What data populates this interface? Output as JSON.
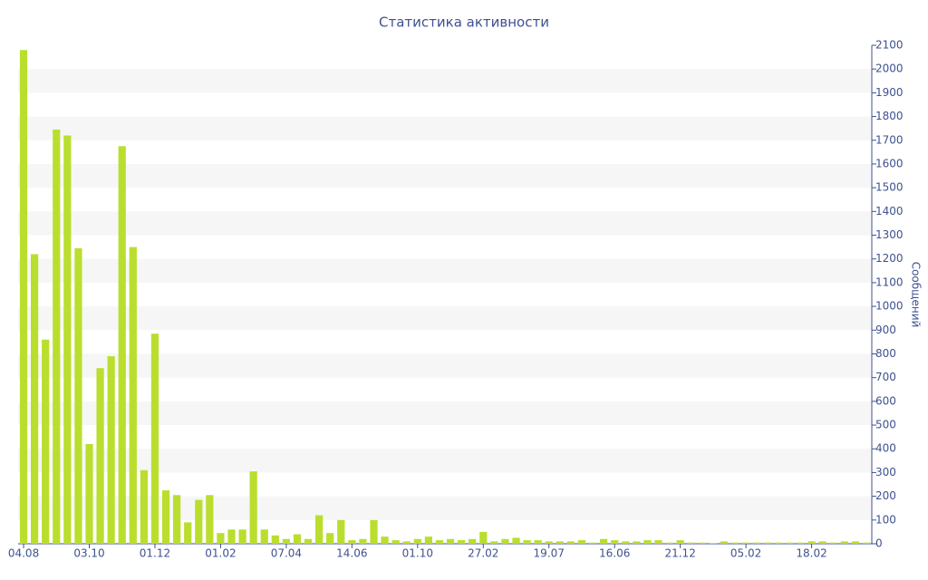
{
  "chart_data": {
    "type": "bar",
    "title": "Статистика активности",
    "y_label": "Сообщений",
    "color": "#bade2e",
    "categories": [
      "04.08",
      null,
      null,
      null,
      null,
      null,
      "03.10",
      null,
      null,
      null,
      null,
      null,
      "01.12",
      null,
      null,
      null,
      null,
      null,
      "01.02",
      null,
      null,
      null,
      null,
      null,
      "07.04",
      null,
      null,
      null,
      null,
      null,
      "14.06",
      null,
      null,
      null,
      null,
      null,
      "01.10",
      null,
      null,
      null,
      null,
      null,
      "27.02",
      null,
      null,
      null,
      null,
      null,
      "19.07",
      null,
      null,
      null,
      null,
      null,
      "16.06",
      null,
      null,
      null,
      null,
      null,
      "21.12",
      null,
      null,
      null,
      null,
      null,
      "05.02",
      null,
      null,
      null,
      null,
      null,
      "18.02",
      null,
      null,
      null,
      null,
      null
    ],
    "values": [
      2080,
      1220,
      860,
      1745,
      1720,
      1245,
      420,
      740,
      790,
      1675,
      1250,
      310,
      885,
      225,
      205,
      90,
      185,
      205,
      45,
      60,
      60,
      305,
      60,
      35,
      20,
      40,
      20,
      120,
      45,
      100,
      15,
      20,
      100,
      30,
      15,
      10,
      20,
      30,
      15,
      20,
      15,
      20,
      50,
      10,
      20,
      25,
      15,
      15,
      10,
      10,
      10,
      15,
      5,
      20,
      15,
      10,
      10,
      15,
      15,
      5,
      15,
      5,
      5,
      3,
      10,
      5,
      5,
      5,
      5,
      5,
      5,
      5,
      10,
      10,
      5,
      10,
      10,
      5
    ],
    "ylim": [
      0,
      2100
    ],
    "yticks": [
      0,
      100,
      200,
      300,
      400,
      500,
      600,
      700,
      800,
      900,
      1000,
      1100,
      1200,
      1300,
      1400,
      1500,
      1600,
      1700,
      1800,
      1900,
      2000,
      2100
    ],
    "grid": true
  }
}
